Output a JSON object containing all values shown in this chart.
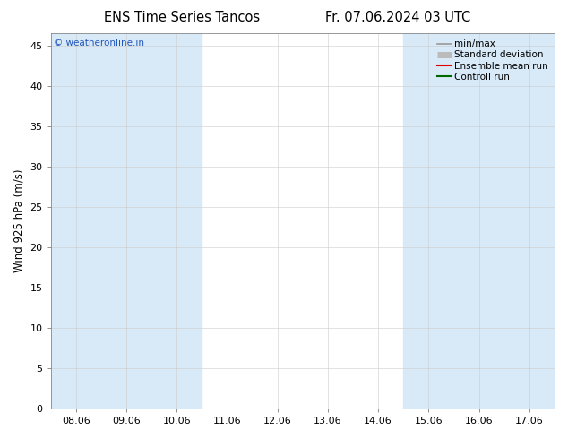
{
  "title_left": "ENS Time Series Tancos",
  "title_right": "Fr. 07.06.2024 03 UTC",
  "ylabel": "Wind 925 hPa (m/s)",
  "ylim": [
    0,
    46.5
  ],
  "yticks": [
    0,
    5,
    10,
    15,
    20,
    25,
    30,
    35,
    40,
    45
  ],
  "x_labels": [
    "08.06",
    "09.06",
    "10.06",
    "11.06",
    "12.06",
    "13.06",
    "14.06",
    "15.06",
    "16.06",
    "17.06"
  ],
  "band_color": "#d8eaf8",
  "bg_color": "#ffffff",
  "watermark": "© weatheronline.in",
  "watermark_color": "#2255bb",
  "legend_items": [
    {
      "label": "min/max",
      "color": "#999999",
      "lw": 1.2
    },
    {
      "label": "Standard deviation",
      "color": "#bbbbbb",
      "lw": 5
    },
    {
      "label": "Ensemble mean run",
      "color": "#dd0000",
      "lw": 1.5
    },
    {
      "label": "Controll run",
      "color": "#006600",
      "lw": 1.5
    }
  ],
  "title_fontsize": 10.5,
  "axis_label_fontsize": 8.5,
  "tick_fontsize": 8,
  "legend_fontsize": 7.5,
  "band1_start": -0.5,
  "band1_end": 2.5,
  "band2_start": 6.5,
  "band2_end": 9.5,
  "xlim": [
    -0.5,
    9.5
  ]
}
